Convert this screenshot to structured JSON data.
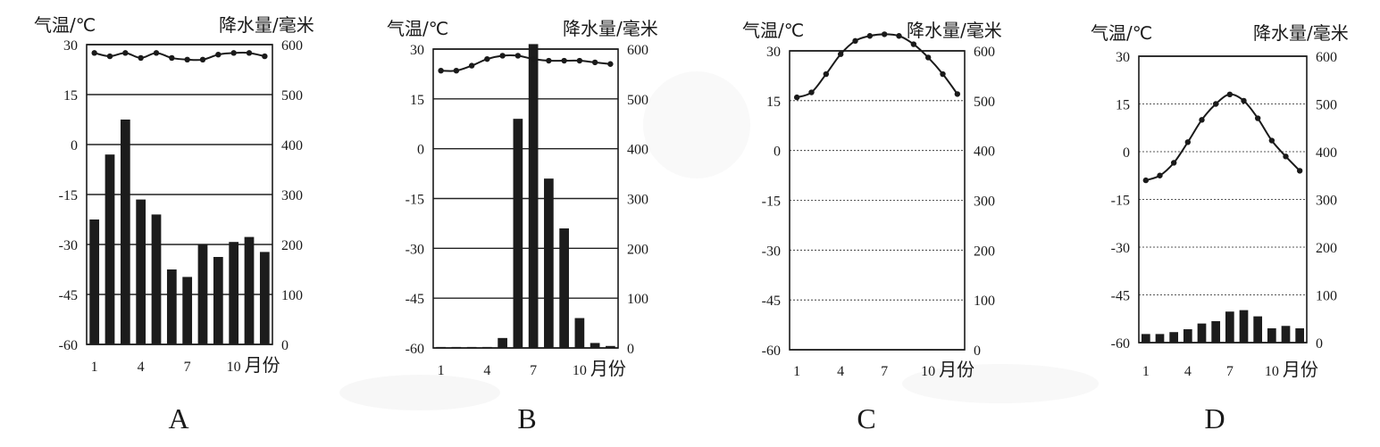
{
  "chart_data": [
    {
      "type": "bar+line",
      "label": "A",
      "y_left_title": "气温/℃",
      "y_right_title": "降水量/毫米",
      "x_unit": "月份",
      "x_tick_labels": [
        "1",
        "4",
        "7",
        "10"
      ],
      "temp_ticks": [
        "30",
        "15",
        "0",
        "-15",
        "-30",
        "-45",
        "-60"
      ],
      "precip_ticks": [
        "600",
        "500",
        "400",
        "300",
        "200",
        "100",
        "0"
      ],
      "temp_range": [
        -60,
        30
      ],
      "precip_range": [
        0,
        600
      ],
      "months": [
        1,
        2,
        3,
        4,
        5,
        6,
        7,
        8,
        9,
        10,
        11,
        12
      ],
      "temperature": [
        27.5,
        26.5,
        27.5,
        26,
        27.5,
        26,
        25.5,
        25.5,
        27,
        27.5,
        27.5,
        26.5
      ],
      "precipitation": [
        250,
        380,
        450,
        290,
        260,
        150,
        135,
        200,
        175,
        205,
        215,
        185
      ]
    },
    {
      "type": "bar+line",
      "label": "B",
      "y_left_title": "气温/℃",
      "y_right_title": "降水量/毫米",
      "x_unit": "月份",
      "x_tick_labels": [
        "1",
        "4",
        "7",
        "10"
      ],
      "temp_ticks": [
        "30",
        "15",
        "0",
        "-15",
        "-30",
        "-45",
        "-60"
      ],
      "precip_ticks": [
        "600",
        "500",
        "400",
        "300",
        "200",
        "100",
        "0"
      ],
      "temp_range": [
        -60,
        30
      ],
      "precip_range": [
        0,
        600
      ],
      "months": [
        1,
        2,
        3,
        4,
        5,
        6,
        7,
        8,
        9,
        10,
        11,
        12
      ],
      "temperature": [
        23.5,
        23.5,
        25,
        27,
        28,
        28,
        27,
        26.5,
        26.5,
        26.5,
        26,
        25.5
      ],
      "precipitation": [
        2,
        2,
        2,
        2,
        20,
        460,
        610,
        340,
        240,
        60,
        10,
        4
      ]
    },
    {
      "type": "bar+line",
      "label": "C",
      "y_left_title": "气温/℃",
      "y_right_title": "降水量/毫米",
      "x_unit": "月份",
      "x_tick_labels": [
        "1",
        "4",
        "7",
        "10"
      ],
      "temp_ticks": [
        "30",
        "15",
        "0",
        "-15",
        "-30",
        "-45",
        "-60"
      ],
      "precip_ticks": [
        "600",
        "500",
        "400",
        "300",
        "200",
        "100",
        "0"
      ],
      "temp_range": [
        -60,
        30
      ],
      "precip_range": [
        0,
        600
      ],
      "months": [
        1,
        2,
        3,
        4,
        5,
        6,
        7,
        8,
        9,
        10,
        11,
        12
      ],
      "temperature": [
        16,
        17.5,
        23,
        29,
        33,
        34.5,
        35,
        34.5,
        32,
        28,
        23,
        17
      ],
      "precipitation": [
        0,
        0,
        0,
        1,
        0,
        0,
        0,
        0,
        0,
        1,
        0,
        0
      ]
    },
    {
      "type": "bar+line",
      "label": "D",
      "y_left_title": "气温/℃",
      "y_right_title": "降水量/毫米",
      "x_unit": "月份",
      "x_tick_labels": [
        "1",
        "4",
        "7",
        "10"
      ],
      "temp_ticks": [
        "30",
        "15",
        "0",
        "-15",
        "-30",
        "-45",
        "-60"
      ],
      "precip_ticks": [
        "600",
        "500",
        "400",
        "300",
        "200",
        "100",
        "0"
      ],
      "temp_range": [
        -60,
        30
      ],
      "precip_range": [
        0,
        600
      ],
      "months": [
        1,
        2,
        3,
        4,
        5,
        6,
        7,
        8,
        9,
        10,
        11,
        12
      ],
      "temperature": [
        -9,
        -7.5,
        -3.5,
        3,
        10,
        15,
        18,
        16,
        10.5,
        3.5,
        -1.5,
        -6
      ],
      "precipitation": [
        18,
        18,
        22,
        28,
        40,
        45,
        65,
        68,
        55,
        30,
        35,
        30
      ]
    }
  ]
}
